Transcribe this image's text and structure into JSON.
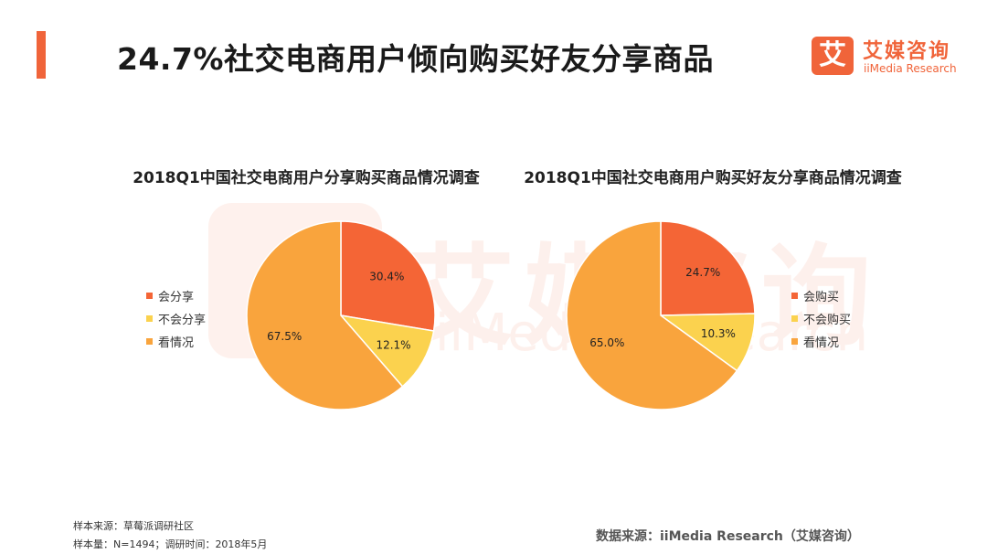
{
  "title": "24.7%社交电商用户倾向购买好友分享商品",
  "logo": {
    "mark": "艾",
    "name": "艾媒咨询",
    "en": "iiMedia Research"
  },
  "watermark": {
    "glyph": "艾媒咨询",
    "en": "iiMedia Research"
  },
  "colors": {
    "accent": "#f0643a",
    "slice_dark": "#f46536",
    "slice_yellow": "#fbd24e",
    "slice_orange": "#f9a43d"
  },
  "chart_data": [
    {
      "type": "pie",
      "title": "2018Q1中国社交电商用户分享购买商品情况调查",
      "legend_position": "left",
      "slices": [
        {
          "label": "会分享",
          "value": 30.4,
          "value_label": "30.4%",
          "color": "#f46536"
        },
        {
          "label": "不会分享",
          "value": 12.1,
          "value_label": "12.1%",
          "color": "#fbd24e"
        },
        {
          "label": "看情况",
          "value": 67.5,
          "value_label": "67.5%",
          "color": "#f9a43d"
        }
      ]
    },
    {
      "type": "pie",
      "title": "2018Q1中国社交电商用户购买好友分享商品情况调查",
      "legend_position": "right",
      "slices": [
        {
          "label": "会购买",
          "value": 24.7,
          "value_label": "24.7%",
          "color": "#f46536"
        },
        {
          "label": "不会购买",
          "value": 10.3,
          "value_label": "10.3%",
          "color": "#fbd24e"
        },
        {
          "label": "看情况",
          "value": 65.0,
          "value_label": "65.0%",
          "color": "#f9a43d"
        }
      ]
    }
  ],
  "footnotes": {
    "sample_source": "样本来源：草莓派调研社区",
    "sample_size": "样本量：N=1494；调研时间：2018年5月"
  },
  "data_source": "数据来源：iiMedia Research（艾媒咨询）"
}
